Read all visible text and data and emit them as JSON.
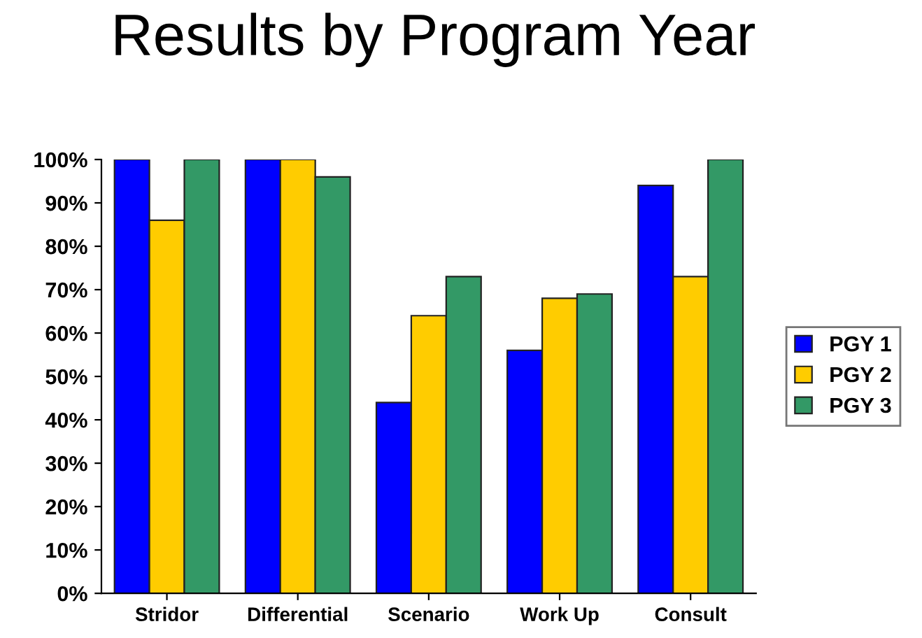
{
  "chart_data": {
    "type": "bar",
    "title": "Results by Program Year",
    "categories": [
      "Stridor",
      "Differential",
      "Scenario",
      "Work Up",
      "Consult"
    ],
    "series": [
      {
        "name": "PGY 1",
        "color": "#0000ff",
        "values": [
          100,
          100,
          44,
          56,
          94
        ]
      },
      {
        "name": "PGY 2",
        "color": "#ffcc00",
        "values": [
          86,
          100,
          64,
          68,
          73
        ]
      },
      {
        "name": "PGY 3",
        "color": "#339966",
        "values": [
          100,
          96,
          73,
          69,
          100
        ]
      }
    ],
    "ylim": [
      0,
      100
    ],
    "yticks": [
      {
        "value": 0,
        "label": "0%"
      },
      {
        "value": 10,
        "label": "10%"
      },
      {
        "value": 20,
        "label": "20%"
      },
      {
        "value": 30,
        "label": "30%"
      },
      {
        "value": 40,
        "label": "40%"
      },
      {
        "value": 50,
        "label": "50%"
      },
      {
        "value": 60,
        "label": "60%"
      },
      {
        "value": 70,
        "label": "70%"
      },
      {
        "value": 80,
        "label": "80%"
      },
      {
        "value": 90,
        "label": "90%"
      },
      {
        "value": 100,
        "label": "100%"
      }
    ],
    "legend": "right"
  }
}
